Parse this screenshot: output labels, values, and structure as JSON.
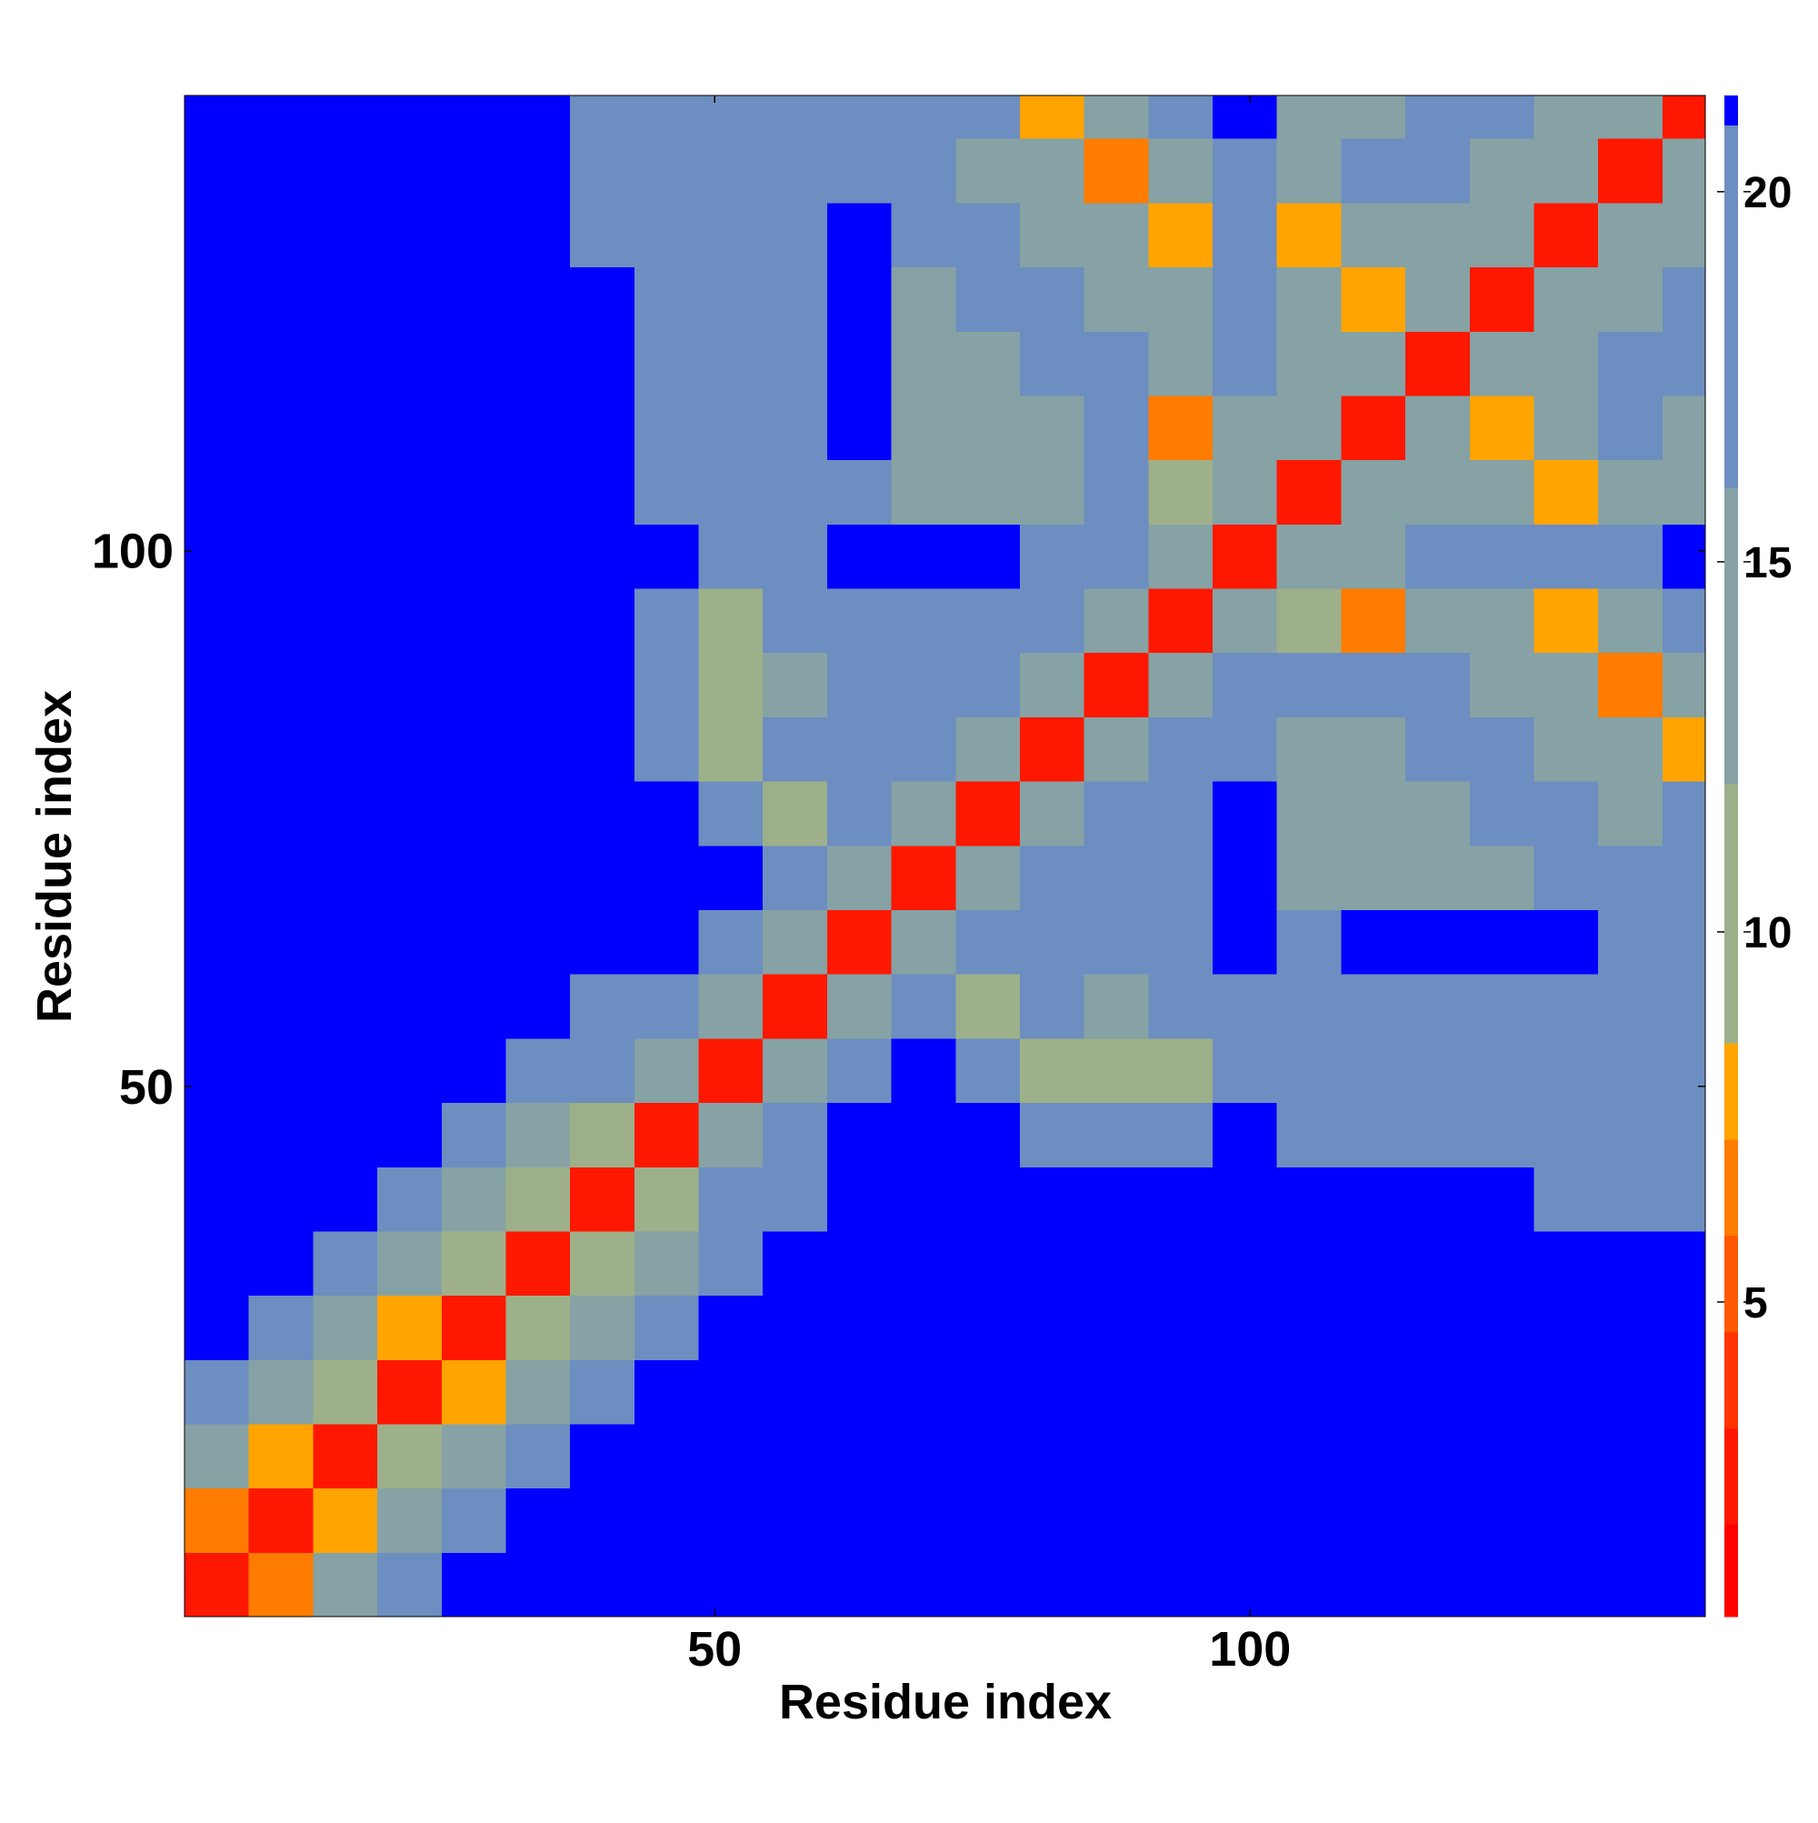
{
  "chart_data": {
    "type": "heatmap",
    "xlabel": "Residue index",
    "ylabel": "Residue index",
    "xlim": [
      0.5,
      142.5
    ],
    "ylim": [
      0.5,
      142.5
    ],
    "xticks": [
      50,
      100
    ],
    "yticks": [
      50,
      100
    ],
    "x_edges": [
      0.5,
      6.5,
      12.5,
      18.5,
      24.5,
      30.5,
      36.5,
      42.5,
      48.5,
      54.5,
      60.5,
      66.5,
      72.5,
      78.5,
      84.5,
      90.5,
      96.5,
      102.5,
      108.5,
      114.5,
      120.5,
      126.5,
      132.5,
      138.5,
      142.5
    ],
    "y_edges": [
      0.5,
      6.5,
      12.5,
      18.5,
      24.5,
      30.5,
      36.5,
      42.5,
      48.5,
      54.5,
      60.5,
      66.5,
      72.5,
      78.5,
      84.5,
      90.5,
      96.5,
      102.5,
      108.5,
      114.5,
      120.5,
      126.5,
      132.5,
      138.5,
      142.5
    ],
    "values": [
      [
        3,
        7,
        14,
        18,
        21,
        21,
        21,
        21,
        21,
        21,
        21,
        21,
        21,
        21,
        21,
        21,
        21,
        21,
        21,
        21,
        21,
        21,
        21,
        21
      ],
      [
        7,
        3,
        8,
        14,
        18,
        21,
        21,
        21,
        21,
        21,
        21,
        21,
        21,
        21,
        21,
        21,
        21,
        21,
        21,
        21,
        21,
        21,
        21,
        21
      ],
      [
        14,
        8,
        3,
        10,
        14,
        18,
        21,
        21,
        21,
        21,
        21,
        21,
        21,
        21,
        21,
        21,
        21,
        21,
        21,
        21,
        21,
        21,
        21,
        21
      ],
      [
        18,
        14,
        10,
        3,
        8,
        14,
        17,
        21,
        21,
        21,
        21,
        21,
        21,
        21,
        21,
        21,
        21,
        21,
        21,
        21,
        21,
        21,
        21,
        21
      ],
      [
        21,
        18,
        14,
        8,
        3,
        9,
        14,
        19,
        21,
        21,
        21,
        21,
        21,
        21,
        21,
        21,
        21,
        21,
        21,
        21,
        21,
        21,
        21,
        21
      ],
      [
        21,
        21,
        18,
        14,
        9,
        3,
        10,
        14,
        18,
        21,
        21,
        21,
        21,
        21,
        21,
        21,
        21,
        21,
        21,
        21,
        21,
        21,
        21,
        21
      ],
      [
        21,
        21,
        21,
        17,
        14,
        10,
        3,
        9,
        17,
        19,
        21,
        21,
        21,
        21,
        21,
        21,
        21,
        21,
        21,
        21,
        21,
        18,
        18,
        18
      ],
      [
        21,
        21,
        21,
        21,
        19,
        14,
        9,
        3,
        12,
        17,
        21,
        21,
        21,
        17,
        16,
        18,
        21,
        18,
        17,
        17,
        17,
        16,
        16,
        17
      ],
      [
        21,
        21,
        21,
        21,
        21,
        18,
        17,
        12,
        3,
        12,
        17,
        21,
        18,
        10,
        9,
        11,
        17,
        17,
        16,
        18,
        17,
        17,
        17,
        16
      ],
      [
        21,
        21,
        21,
        21,
        21,
        21,
        19,
        17,
        12,
        3,
        12,
        17,
        11,
        16,
        14,
        16,
        18,
        17,
        18,
        17,
        19,
        17,
        18,
        18
      ],
      [
        21,
        21,
        21,
        21,
        21,
        21,
        21,
        21,
        17,
        12,
        3,
        12,
        16,
        18,
        17,
        19,
        21,
        19,
        21,
        21,
        21,
        21,
        19,
        18
      ],
      [
        21,
        21,
        21,
        21,
        21,
        21,
        21,
        21,
        21,
        17,
        12,
        3,
        12,
        17,
        17,
        18,
        21,
        14,
        12,
        13,
        15,
        18,
        17,
        18
      ],
      [
        21,
        21,
        21,
        21,
        21,
        21,
        21,
        21,
        18,
        11,
        16,
        12,
        3,
        12,
        17,
        16,
        21,
        13,
        13,
        14,
        16,
        17,
        15,
        16
      ],
      [
        21,
        21,
        21,
        21,
        21,
        21,
        21,
        17,
        10,
        16,
        18,
        17,
        12,
        3,
        12,
        17,
        17,
        15,
        15,
        16,
        16,
        15,
        14,
        8
      ],
      [
        21,
        21,
        21,
        21,
        21,
        21,
        21,
        16,
        9,
        14,
        17,
        17,
        17,
        12,
        3,
        12,
        17,
        16,
        16,
        16,
        15,
        14,
        7,
        13
      ],
      [
        21,
        21,
        21,
        21,
        21,
        21,
        21,
        18,
        11,
        16,
        19,
        18,
        16,
        17,
        12,
        3,
        12,
        10,
        7,
        15,
        15,
        8,
        13,
        17
      ],
      [
        21,
        21,
        21,
        21,
        21,
        21,
        21,
        21,
        17,
        18,
        21,
        21,
        21,
        17,
        17,
        12,
        3,
        12,
        15,
        16,
        18,
        17,
        19,
        21
      ],
      [
        21,
        21,
        21,
        21,
        21,
        21,
        21,
        18,
        17,
        17,
        19,
        14,
        13,
        15,
        16,
        10,
        12,
        3,
        12,
        14,
        14,
        8,
        14,
        15
      ],
      [
        21,
        21,
        21,
        21,
        21,
        21,
        21,
        17,
        16,
        18,
        21,
        12,
        13,
        15,
        16,
        7,
        15,
        12,
        3,
        12,
        8,
        15,
        16,
        14
      ],
      [
        21,
        21,
        21,
        21,
        21,
        21,
        21,
        17,
        18,
        17,
        21,
        13,
        14,
        16,
        16,
        15,
        16,
        14,
        12,
        3,
        12,
        15,
        17,
        16
      ],
      [
        21,
        21,
        21,
        21,
        21,
        21,
        21,
        17,
        17,
        19,
        21,
        15,
        16,
        16,
        15,
        15,
        18,
        14,
        8,
        12,
        3,
        12,
        15,
        16
      ],
      [
        21,
        21,
        21,
        21,
        21,
        21,
        18,
        16,
        17,
        17,
        21,
        18,
        17,
        15,
        14,
        8,
        17,
        8,
        15,
        15,
        12,
        3,
        12,
        15
      ],
      [
        21,
        21,
        21,
        21,
        21,
        21,
        18,
        16,
        17,
        18,
        19,
        17,
        15,
        14,
        7,
        13,
        19,
        14,
        16,
        17,
        15,
        12,
        3,
        12
      ],
      [
        21,
        21,
        21,
        21,
        21,
        21,
        18,
        17,
        16,
        18,
        18,
        18,
        16,
        8,
        13,
        17,
        21,
        15,
        14,
        16,
        16,
        15,
        12,
        3
      ]
    ],
    "colorbar": {
      "levels": [
        0.75,
        2,
        3.3,
        4.6,
        5.9,
        7.2,
        8.5,
        12,
        16,
        20.9,
        21.3
      ],
      "colors": [
        "#ff0000",
        "#ff1800",
        "#ff3400",
        "#ff5800",
        "#ff7c00",
        "#ffa400",
        "#9db08a",
        "#86a2a4",
        "#6d8ec0",
        "#0000ff"
      ],
      "ticks": [
        5,
        10,
        15,
        20
      ]
    }
  }
}
